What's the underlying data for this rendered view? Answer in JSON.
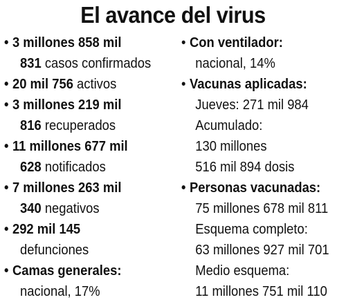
{
  "title": "El avance del virus",
  "left": [
    {
      "head": "3 millones 858 mil",
      "value": "831",
      "label": "casos confirmados"
    },
    {
      "head": "20 mil 756",
      "label": "activos"
    },
    {
      "head": "3 millones 219 mil",
      "value": "816",
      "label": "recuperados"
    },
    {
      "head": "11 millones 677 mil",
      "value": "628",
      "label": "notificados"
    },
    {
      "head": "7 millones 263 mil",
      "value": "340",
      "label": "negativos"
    },
    {
      "head": "292 mil 145",
      "label": "defunciones"
    },
    {
      "head": "Camas generales:",
      "label": "nacional, 17%"
    }
  ],
  "right": {
    "ventilador": {
      "head": "Con ventilador:",
      "text": "nacional, 14%"
    },
    "vacunas": {
      "head": "Vacunas aplicadas:",
      "lines": [
        "Jueves: 271 mil 984",
        "Acumulado:",
        "130 millones",
        "516 mil 894 dosis"
      ]
    },
    "personas": {
      "head": "Personas vacunadas:",
      "lines": [
        "75 millones 678 mil 811",
        "Esquema completo:",
        "63 millones 927 mil 701",
        "Medio esquema:",
        "11 millones 751 mil 110"
      ]
    }
  },
  "bullet": "•"
}
